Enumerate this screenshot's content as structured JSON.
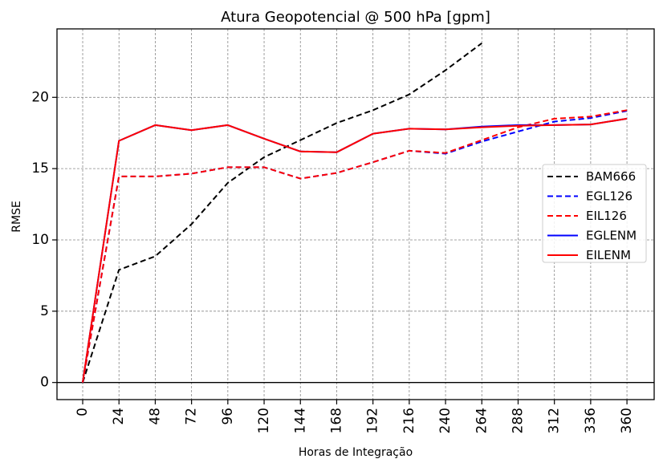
{
  "chart_data": {
    "type": "line",
    "title": "Atura Geopotencial @ 500 hPa [gpm]",
    "xlabel": "Horas de Integração",
    "ylabel": "RMSE",
    "x": [
      0,
      24,
      48,
      72,
      96,
      120,
      144,
      168,
      192,
      216,
      240,
      264,
      288,
      312,
      336,
      360
    ],
    "x_tick_labels": [
      "0",
      "24",
      "48",
      "72",
      "96",
      "120",
      "144",
      "168",
      "192",
      "216",
      "240",
      "264",
      "288",
      "312",
      "336",
      "360"
    ],
    "xlim": [
      -17,
      378
    ],
    "ylim": [
      -1.2,
      24.8
    ],
    "y_ticks": [
      0,
      5,
      10,
      15,
      20
    ],
    "y_tick_labels": [
      "0",
      "5",
      "10",
      "15",
      "20"
    ],
    "grid": true,
    "zero_line": true,
    "legend_position": "center-right",
    "series": [
      {
        "name": "BAM666",
        "color": "#000000",
        "style": "dashed",
        "x": [
          0,
          24,
          48,
          72,
          96,
          120,
          144,
          168,
          192,
          216,
          240,
          264
        ],
        "values": [
          0.0,
          7.9,
          8.85,
          11.1,
          14.0,
          15.8,
          17.0,
          18.2,
          19.1,
          20.2,
          21.9,
          23.8
        ]
      },
      {
        "name": "EGL126",
        "color": "#0000ff",
        "style": "dashed",
        "x": [
          0,
          24,
          48,
          72,
          96,
          120,
          144,
          168,
          192,
          216,
          240,
          264,
          288,
          312,
          336,
          360
        ],
        "values": [
          0.0,
          14.45,
          14.45,
          14.65,
          15.1,
          15.1,
          14.3,
          14.7,
          15.45,
          16.25,
          16.05,
          16.9,
          17.6,
          18.3,
          18.55,
          19.05
        ]
      },
      {
        "name": "EIL126",
        "color": "#ff0000",
        "style": "dashed",
        "x": [
          0,
          24,
          48,
          72,
          96,
          120,
          144,
          168,
          192,
          216,
          240,
          264,
          288,
          312,
          336,
          360
        ],
        "values": [
          0.0,
          14.45,
          14.45,
          14.65,
          15.1,
          15.1,
          14.3,
          14.7,
          15.45,
          16.25,
          16.1,
          17.0,
          17.9,
          18.5,
          18.65,
          19.1
        ]
      },
      {
        "name": "EGLENM",
        "color": "#0000ff",
        "style": "solid",
        "x": [
          0,
          24,
          48,
          72,
          96,
          120,
          144,
          168,
          192,
          216,
          240,
          264,
          288,
          312,
          336,
          360
        ],
        "values": [
          0.0,
          16.95,
          18.05,
          17.7,
          18.05,
          17.1,
          16.2,
          16.15,
          17.45,
          17.8,
          17.75,
          17.95,
          18.05,
          18.05,
          18.1,
          18.5
        ]
      },
      {
        "name": "EILENM",
        "color": "#ff0000",
        "style": "solid",
        "x": [
          0,
          24,
          48,
          72,
          96,
          120,
          144,
          168,
          192,
          216,
          240,
          264,
          288,
          312,
          336,
          360
        ],
        "values": [
          0.0,
          16.95,
          18.05,
          17.7,
          18.05,
          17.1,
          16.2,
          16.15,
          17.45,
          17.8,
          17.75,
          17.9,
          18.0,
          18.05,
          18.1,
          18.5
        ]
      }
    ]
  }
}
